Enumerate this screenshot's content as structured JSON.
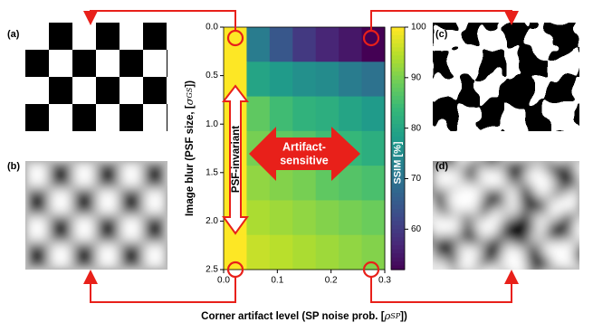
{
  "chart_data": {
    "type": "heatmap",
    "x_label": {
      "text": "Corner artifact level (SP noise prob. [",
      "symbol": "ρ",
      "sub": "SP",
      "end": "])"
    },
    "y_label": {
      "text": "Image blur (PSF size, [",
      "symbol": "σ",
      "sub": "GS",
      "end": "])"
    },
    "xlim": [
      0,
      0.3
    ],
    "ylim": [
      2.5,
      0
    ],
    "xticks": [
      {
        "value": 0,
        "label": "0.0"
      },
      0.1,
      0.2,
      0.3
    ],
    "yticks": [
      {
        "value": 0,
        "label": "0.0"
      },
      0.5,
      {
        "value": 1,
        "label": "1.0"
      },
      1.5,
      {
        "value": 2,
        "label": "2.0"
      },
      2.5
    ],
    "colormap": "viridis",
    "colorbar": {
      "label": "SSIM [%]",
      "lim": [
        52,
        100
      ],
      "ticks": [
        60,
        70,
        80,
        90,
        100
      ]
    },
    "values": [
      [
        100,
        72,
        65,
        60,
        57,
        55,
        52
      ],
      [
        100,
        80,
        78,
        76,
        75,
        72,
        70
      ],
      [
        100,
        88,
        85,
        83,
        82,
        80,
        78
      ],
      [
        100,
        90,
        88,
        87,
        85,
        84,
        82
      ],
      [
        100,
        92,
        91,
        90,
        88,
        87,
        86
      ],
      [
        100,
        94,
        93,
        92,
        91,
        90,
        89
      ],
      [
        100,
        96,
        95,
        94,
        93,
        92,
        91
      ]
    ],
    "annotations": {
      "psf": "PSF-invariant",
      "artifact": [
        "Artifact-",
        "sensitive"
      ]
    },
    "panels": [
      "(a)",
      "(b)",
      "(c)",
      "(d)"
    ]
  }
}
